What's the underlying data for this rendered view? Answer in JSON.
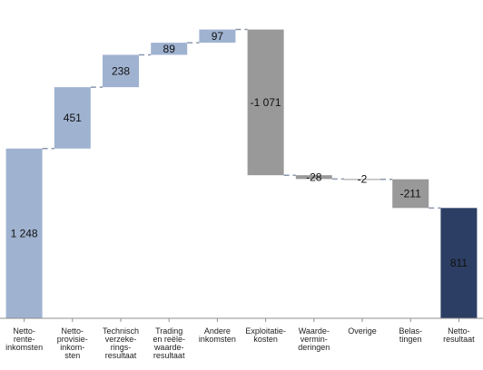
{
  "chart_data": {
    "type": "waterfall",
    "categories": [
      [
        "Netto-",
        "rente-",
        "inkomsten"
      ],
      [
        "Netto-",
        "provisie-",
        "inkom-",
        "sten"
      ],
      [
        "Technisch",
        "verzeke-",
        "rings-",
        "resultaat"
      ],
      [
        "Trading",
        "en reële-",
        "waarde-",
        "resultaat"
      ],
      [
        "Andere",
        "inkomsten"
      ],
      [
        "Exploitatie-",
        "kosten"
      ],
      [
        "Waarde-",
        "vermin-",
        "deringen"
      ],
      [
        "Overige"
      ],
      [
        "Belas-",
        "tingen"
      ],
      [
        "Netto-",
        "resultaat"
      ]
    ],
    "values": [
      1248,
      451,
      238,
      89,
      97,
      -1071,
      -28,
      -2,
      -211,
      811
    ],
    "labels": [
      "1 248",
      "451",
      "238",
      "89",
      "97",
      "-1 071",
      "-28",
      "-2",
      "-211",
      "811"
    ],
    "kinds": [
      "total",
      "delta",
      "delta",
      "delta",
      "delta",
      "delta",
      "delta",
      "delta",
      "delta",
      "total"
    ],
    "grid": false,
    "legend": "none",
    "colors": {
      "start_total": "#9fb2d0",
      "increase": "#9fb2d0",
      "decrease": "#999999",
      "end_total": "#2c3e63",
      "connector": "#8a96ab",
      "axis": "#8f8f8f"
    }
  }
}
